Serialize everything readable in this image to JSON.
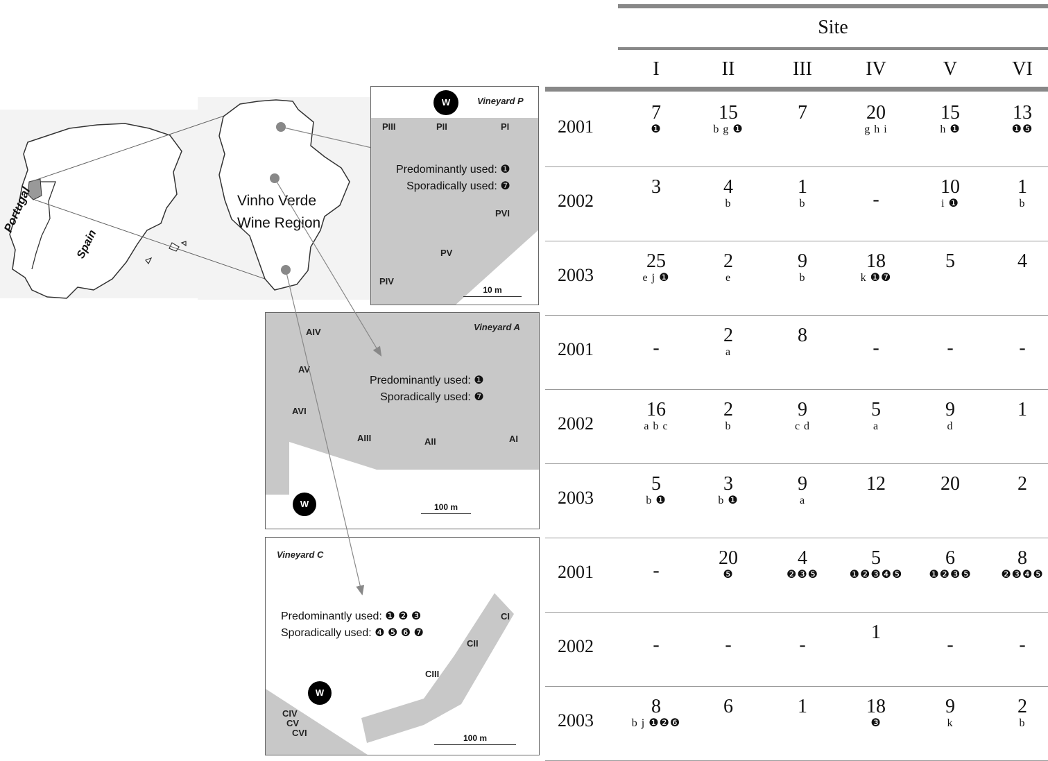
{
  "map": {
    "country_portugal": "Portugal",
    "country_spain": "Spain",
    "region_label_line1": "Vinho Verde",
    "region_label_line2": "Wine Region",
    "vineyard_p": {
      "title": "Vineyard P",
      "w": "W",
      "sites": [
        "PIII",
        "PII",
        "PI",
        "PVI",
        "PV",
        "PIV"
      ],
      "predominant": "Predominantly used: ❶",
      "sporadic": "Sporadically used: ❼",
      "scale": "10 m"
    },
    "vineyard_a": {
      "title": "Vineyard A",
      "w": "W",
      "sites": [
        "AIV",
        "AV",
        "AVI",
        "AIII",
        "AII",
        "AI"
      ],
      "predominant": "Predominantly used: ❶",
      "sporadic": "Sporadically used: ❼",
      "scale": "100 m"
    },
    "vineyard_c": {
      "title": "Vineyard C",
      "w": "W",
      "sites": [
        "CI",
        "CII",
        "CIII",
        "CIV",
        "CV",
        "CVI"
      ],
      "predominant": "Predominantly used: ❶ ❷ ❸",
      "sporadic": "Sporadically used: ❹ ❺ ❻ ❼",
      "scale": "100 m"
    }
  },
  "table": {
    "site_header": "Site",
    "columns": [
      "I",
      "II",
      "III",
      "IV",
      "V",
      "VI"
    ],
    "rows": [
      {
        "year": "2001",
        "cells": [
          {
            "v": "7",
            "n": "❶"
          },
          {
            "v": "15",
            "n": "b g ❶"
          },
          {
            "v": "7",
            "n": ""
          },
          {
            "v": "20",
            "n": "g h i"
          },
          {
            "v": "15",
            "n": "h ❶"
          },
          {
            "v": "13",
            "n": "❶❺"
          }
        ]
      },
      {
        "year": "2002",
        "cells": [
          {
            "v": "3",
            "n": ""
          },
          {
            "v": "4",
            "n": "b"
          },
          {
            "v": "1",
            "n": "b"
          },
          {
            "v": "-",
            "n": ""
          },
          {
            "v": "10",
            "n": "i ❶"
          },
          {
            "v": "1",
            "n": "b"
          }
        ]
      },
      {
        "year": "2003",
        "cells": [
          {
            "v": "25",
            "n": "e j ❶"
          },
          {
            "v": "2",
            "n": "e"
          },
          {
            "v": "9",
            "n": "b"
          },
          {
            "v": "18",
            "n": "k ❶❼"
          },
          {
            "v": "5",
            "n": ""
          },
          {
            "v": "4",
            "n": ""
          }
        ]
      },
      {
        "year": "2001",
        "cells": [
          {
            "v": "-",
            "n": ""
          },
          {
            "v": "2",
            "n": "a"
          },
          {
            "v": "8",
            "n": ""
          },
          {
            "v": "-",
            "n": ""
          },
          {
            "v": "-",
            "n": ""
          },
          {
            "v": "-",
            "n": ""
          }
        ]
      },
      {
        "year": "2002",
        "cells": [
          {
            "v": "16",
            "n": "a b c"
          },
          {
            "v": "2",
            "n": "b"
          },
          {
            "v": "9",
            "n": "c d"
          },
          {
            "v": "5",
            "n": "a"
          },
          {
            "v": "9",
            "n": "d"
          },
          {
            "v": "1",
            "n": ""
          }
        ]
      },
      {
        "year": "2003",
        "cells": [
          {
            "v": "5",
            "n": "b ❶"
          },
          {
            "v": "3",
            "n": "b ❶"
          },
          {
            "v": "9",
            "n": "a"
          },
          {
            "v": "12",
            "n": ""
          },
          {
            "v": "20",
            "n": ""
          },
          {
            "v": "2",
            "n": ""
          }
        ]
      },
      {
        "year": "2001",
        "cells": [
          {
            "v": "-",
            "n": ""
          },
          {
            "v": "20",
            "n": "❺"
          },
          {
            "v": "4",
            "n": "❷❸❺"
          },
          {
            "v": "5",
            "n": "❶❷❸❹❺"
          },
          {
            "v": "6",
            "n": "❶❷❸❺"
          },
          {
            "v": "8",
            "n": "❷❸❹❺"
          }
        ]
      },
      {
        "year": "2002",
        "cells": [
          {
            "v": "-",
            "n": ""
          },
          {
            "v": "-",
            "n": ""
          },
          {
            "v": "-",
            "n": ""
          },
          {
            "v": "1",
            "n": ""
          },
          {
            "v": "-",
            "n": ""
          },
          {
            "v": "-",
            "n": ""
          }
        ]
      },
      {
        "year": "2003",
        "cells": [
          {
            "v": "8",
            "n": "b j ❶❷❻"
          },
          {
            "v": "6",
            "n": ""
          },
          {
            "v": "1",
            "n": ""
          },
          {
            "v": "18",
            "n": "❸"
          },
          {
            "v": "9",
            "n": "k"
          },
          {
            "v": "2",
            "n": "b"
          }
        ]
      }
    ]
  }
}
